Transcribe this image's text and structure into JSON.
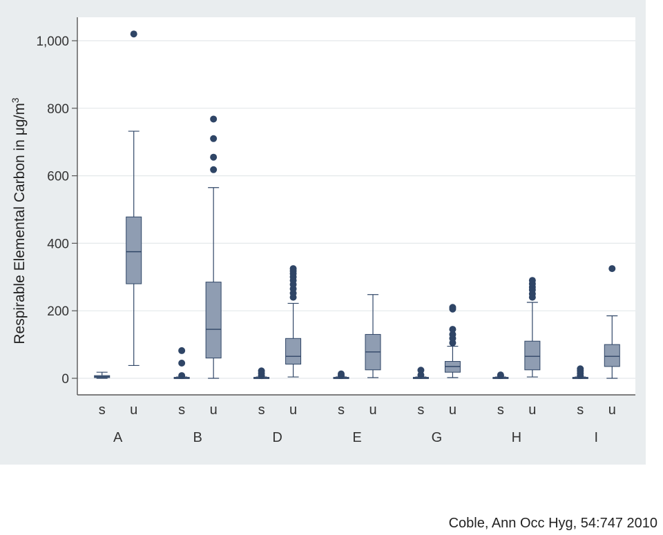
{
  "citation": "Coble, Ann Occ Hyg, 54:747 2010",
  "chart_data": {
    "type": "box",
    "ylabel": "Respirable Elemental Carbon in μg/m",
    "ylabel_sup": "3",
    "ylim": [
      0,
      1050
    ],
    "yticks": [
      0,
      200,
      400,
      600,
      800,
      1000
    ],
    "ytick_labels": [
      "0",
      "200",
      "400",
      "600",
      "800",
      "1,000"
    ],
    "grid": true,
    "colors": {
      "box": "#8f9db2",
      "line": "#2f4566",
      "outlier": "#2f4566",
      "plot_bg": "#ffffff",
      "panel_bg": "#e9edef"
    },
    "groups": [
      {
        "label": "A",
        "boxes": [
          {
            "sub": "s",
            "min": 0,
            "q1": 2,
            "median": 5,
            "q3": 8,
            "max": 18,
            "outliers": []
          },
          {
            "sub": "u",
            "min": 38,
            "q1": 280,
            "median": 375,
            "q3": 478,
            "max": 732,
            "outliers": [
              1020
            ]
          }
        ]
      },
      {
        "label": "B",
        "boxes": [
          {
            "sub": "s",
            "min": 0,
            "q1": 1,
            "median": 2,
            "q3": 3,
            "max": 4,
            "outliers": [
              8,
              45,
              82
            ]
          },
          {
            "sub": "u",
            "min": 0,
            "q1": 60,
            "median": 145,
            "q3": 285,
            "max": 565,
            "outliers": [
              618,
              655,
              710,
              768
            ]
          }
        ]
      },
      {
        "label": "D",
        "boxes": [
          {
            "sub": "s",
            "min": 0,
            "q1": 1,
            "median": 2,
            "q3": 3,
            "max": 4,
            "outliers": [
              8,
              15,
              22
            ]
          },
          {
            "sub": "u",
            "min": 4,
            "q1": 42,
            "median": 65,
            "q3": 118,
            "max": 222,
            "outliers": [
              240,
              252,
              265,
              278,
              290,
              300,
              310,
              318,
              325
            ]
          }
        ]
      },
      {
        "label": "E",
        "boxes": [
          {
            "sub": "s",
            "min": 0,
            "q1": 1,
            "median": 2,
            "q3": 3,
            "max": 4,
            "outliers": [
              8,
              13
            ]
          },
          {
            "sub": "u",
            "min": 2,
            "q1": 25,
            "median": 78,
            "q3": 130,
            "max": 248,
            "outliers": []
          }
        ]
      },
      {
        "label": "G",
        "boxes": [
          {
            "sub": "s",
            "min": 0,
            "q1": 1,
            "median": 2,
            "q3": 3,
            "max": 4,
            "outliers": [
              10,
              24
            ]
          },
          {
            "sub": "u",
            "min": 2,
            "q1": 18,
            "median": 35,
            "q3": 50,
            "max": 95,
            "outliers": [
              105,
              118,
              130,
              145,
              205,
              210
            ]
          }
        ]
      },
      {
        "label": "H",
        "boxes": [
          {
            "sub": "s",
            "min": 0,
            "q1": 1,
            "median": 2,
            "q3": 3,
            "max": 4,
            "outliers": [
              8,
              10
            ]
          },
          {
            "sub": "u",
            "min": 4,
            "q1": 25,
            "median": 65,
            "q3": 110,
            "max": 225,
            "outliers": [
              240,
              250,
              262,
              270,
              280,
              290
            ]
          }
        ]
      },
      {
        "label": "I",
        "boxes": [
          {
            "sub": "s",
            "min": 0,
            "q1": 1,
            "median": 2,
            "q3": 3,
            "max": 4,
            "outliers": [
              8,
              15,
              22,
              28
            ]
          },
          {
            "sub": "u",
            "min": 0,
            "q1": 35,
            "median": 65,
            "q3": 100,
            "max": 185,
            "outliers": [
              325
            ]
          }
        ]
      }
    ]
  }
}
